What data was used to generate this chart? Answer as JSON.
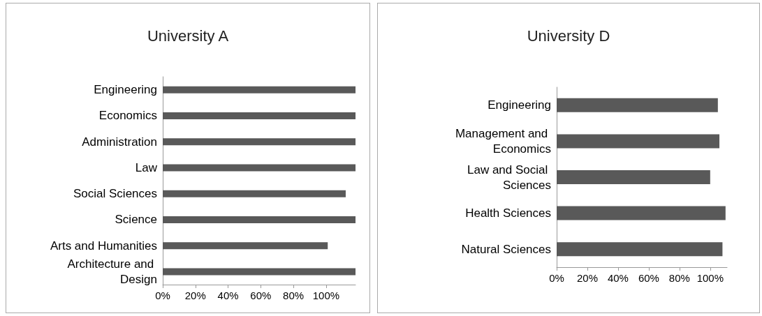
{
  "chart_data": [
    {
      "type": "bar",
      "title": "University A",
      "orientation": "horizontal",
      "categories": [
        "Engineering",
        "Economics",
        "Administration",
        "Law",
        "Social Sciences",
        "Science",
        "Arts and Humanities",
        "Architecture and Design"
      ],
      "values": [
        118,
        118,
        118,
        118,
        112,
        118,
        101,
        118
      ],
      "color": "#595959",
      "xlim": [
        0,
        118
      ],
      "xticks": [
        {
          "value": 0,
          "label": "0%"
        },
        {
          "value": 20,
          "label": "20%"
        },
        {
          "value": 40,
          "label": "40%"
        },
        {
          "value": 60,
          "label": "60%"
        },
        {
          "value": 80,
          "label": "80%"
        },
        {
          "value": 100,
          "label": "100%"
        }
      ],
      "grid": false
    },
    {
      "type": "bar",
      "title": "University D",
      "orientation": "horizontal",
      "categories": [
        "Engineering",
        "Management and Economics",
        "Law and Social Sciences",
        "Health Sciences",
        "Natural Sciences"
      ],
      "values": [
        105,
        106,
        100,
        110,
        108
      ],
      "color": "#595959",
      "xlim": [
        0,
        111
      ],
      "xticks": [
        {
          "value": 0,
          "label": "0%"
        },
        {
          "value": 20,
          "label": "20%"
        },
        {
          "value": 40,
          "label": "40%"
        },
        {
          "value": 60,
          "label": "60%"
        },
        {
          "value": 80,
          "label": "80%"
        },
        {
          "value": 100,
          "label": "100%"
        }
      ],
      "grid": false
    }
  ]
}
